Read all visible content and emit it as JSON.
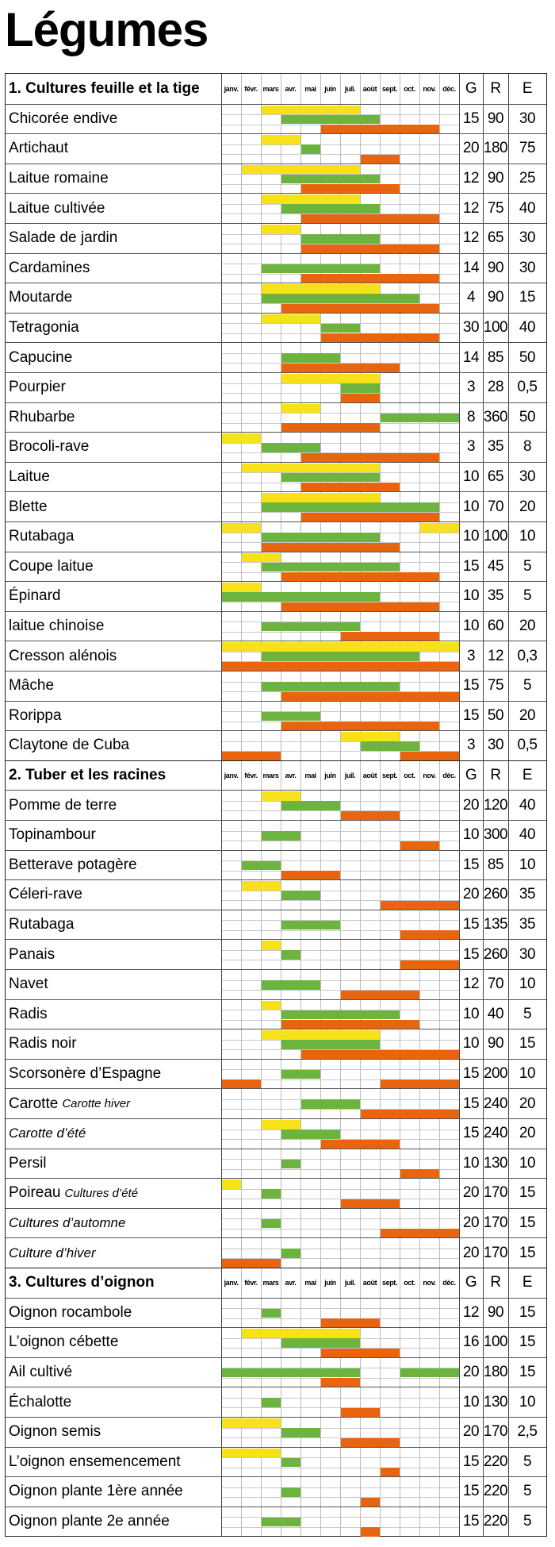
{
  "title": "Légumes",
  "months": [
    "janv.",
    "févr.",
    "mars",
    "avr.",
    "mai",
    "juin",
    "juil.",
    "août",
    "sept.",
    "oct.",
    "nov.",
    "déc."
  ],
  "stat_headers": [
    "G",
    "R",
    "E"
  ],
  "colors": {
    "sowing": "#f7e21a",
    "growing": "#6db33f",
    "harvest": "#e8640f"
  },
  "sections": [
    {
      "title": "1. Cultures feuille et la tige",
      "rows": [
        {
          "name": "Chicorée endive",
          "G": "15",
          "R": "90",
          "E": "30",
          "yellow": [
            [
              3,
              7
            ]
          ],
          "green": [
            [
              4,
              8
            ]
          ],
          "orange": [
            [
              6,
              11
            ]
          ]
        },
        {
          "name": "Artichaut",
          "G": "20",
          "R": "180",
          "E": "75",
          "yellow": [
            [
              3,
              4
            ]
          ],
          "green": [
            [
              5,
              5
            ]
          ],
          "orange": [
            [
              8,
              9
            ]
          ]
        },
        {
          "name": "Laitue romaine",
          "G": "12",
          "R": "90",
          "E": "25",
          "yellow": [
            [
              2,
              7
            ]
          ],
          "green": [
            [
              4,
              8
            ]
          ],
          "orange": [
            [
              5,
              9
            ]
          ]
        },
        {
          "name": "Laitue cultivée",
          "G": "12",
          "R": "75",
          "E": "40",
          "yellow": [
            [
              3,
              7
            ]
          ],
          "green": [
            [
              4,
              8
            ]
          ],
          "orange": [
            [
              5,
              11
            ]
          ]
        },
        {
          "name": "Salade de jardin",
          "G": "12",
          "R": "65",
          "E": "30",
          "yellow": [
            [
              3,
              4
            ]
          ],
          "green": [
            [
              5,
              8
            ]
          ],
          "orange": [
            [
              5,
              11
            ]
          ]
        },
        {
          "name": "Cardamines",
          "G": "14",
          "R": "90",
          "E": "30",
          "yellow": [],
          "green": [
            [
              3,
              8
            ]
          ],
          "orange": [
            [
              5,
              11
            ]
          ]
        },
        {
          "name": "Moutarde",
          "G": "4",
          "R": "90",
          "E": "15",
          "yellow": [
            [
              3,
              8
            ]
          ],
          "green": [
            [
              3,
              10
            ]
          ],
          "orange": [
            [
              4,
              11
            ]
          ]
        },
        {
          "name": "Tetragonia",
          "G": "30",
          "R": "100",
          "E": "40",
          "yellow": [
            [
              3,
              5
            ]
          ],
          "green": [
            [
              6,
              7
            ]
          ],
          "orange": [
            [
              6,
              11
            ]
          ]
        },
        {
          "name": "Capucine",
          "G": "14",
          "R": "85",
          "E": "50",
          "yellow": [],
          "green": [
            [
              4,
              6
            ]
          ],
          "orange": [
            [
              4,
              9
            ]
          ]
        },
        {
          "name": "Pourpier",
          "G": "3",
          "R": "28",
          "E": "0,5",
          "yellow": [
            [
              4,
              8
            ]
          ],
          "green": [
            [
              7,
              8
            ]
          ],
          "orange": [
            [
              7,
              8
            ]
          ]
        },
        {
          "name": "Rhubarbe",
          "G": "8",
          "R": "360",
          "E": "50",
          "yellow": [
            [
              4,
              5
            ]
          ],
          "green": [
            [
              9,
              12
            ]
          ],
          "orange": [
            [
              4,
              8
            ]
          ]
        },
        {
          "name": "Brocoli-rave",
          "G": "3",
          "R": "35",
          "E": "8",
          "yellow": [
            [
              1,
              2
            ]
          ],
          "green": [
            [
              3,
              5
            ]
          ],
          "orange": [
            [
              5,
              11
            ]
          ]
        },
        {
          "name": "Laitue",
          "G": "10",
          "R": "65",
          "E": "30",
          "yellow": [
            [
              2,
              8
            ]
          ],
          "green": [
            [
              4,
              8
            ]
          ],
          "orange": [
            [
              5,
              9
            ]
          ]
        },
        {
          "name": "Blette",
          "G": "10",
          "R": "70",
          "E": "20",
          "yellow": [
            [
              3,
              8
            ]
          ],
          "green": [
            [
              3,
              11
            ]
          ],
          "orange": [
            [
              5,
              11
            ]
          ]
        },
        {
          "name": "Rutabaga",
          "G": "10",
          "R": "100",
          "E": "10",
          "yellow": [
            [
              1,
              2
            ],
            [
              11,
              12
            ]
          ],
          "green": [
            [
              3,
              8
            ]
          ],
          "orange": [
            [
              3,
              9
            ]
          ]
        },
        {
          "name": "Coupe laitue",
          "G": "15",
          "R": "45",
          "E": "5",
          "yellow": [
            [
              2,
              3
            ]
          ],
          "green": [
            [
              3,
              9
            ]
          ],
          "orange": [
            [
              4,
              11
            ]
          ]
        },
        {
          "name": "Épinard",
          "G": "10",
          "R": "35",
          "E": "5",
          "yellow": [
            [
              1,
              2
            ]
          ],
          "green": [
            [
              1,
              8
            ]
          ],
          "orange": [
            [
              4,
              11
            ]
          ]
        },
        {
          "name": "laitue chinoise",
          "G": "10",
          "R": "60",
          "E": "20",
          "yellow": [],
          "green": [
            [
              3,
              7
            ]
          ],
          "orange": [
            [
              7,
              11
            ]
          ]
        },
        {
          "name": "Cresson alénois",
          "G": "3",
          "R": "12",
          "E": "0,3",
          "yellow": [
            [
              1,
              12
            ]
          ],
          "green": [
            [
              3,
              10
            ]
          ],
          "orange": [
            [
              1,
              12
            ]
          ]
        },
        {
          "name": "Mâche",
          "G": "15",
          "R": "75",
          "E": "5",
          "yellow": [],
          "green": [
            [
              3,
              9
            ]
          ],
          "orange": [
            [
              4,
              12
            ]
          ]
        },
        {
          "name": "Rorippa",
          "G": "15",
          "R": "50",
          "E": "20",
          "yellow": [],
          "green": [
            [
              3,
              5
            ]
          ],
          "orange": [
            [
              4,
              11
            ]
          ]
        },
        {
          "name": "Claytone de Cuba",
          "G": "3",
          "R": "30",
          "E": "0,5",
          "yellow": [
            [
              7,
              9
            ]
          ],
          "green": [
            [
              8,
              10
            ]
          ],
          "orange": [
            [
              1,
              3
            ],
            [
              10,
              12
            ]
          ]
        }
      ]
    },
    {
      "title": "2. Tuber et les racines",
      "rows": [
        {
          "name": "Pomme de terre",
          "G": "20",
          "R": "120",
          "E": "40",
          "yellow": [
            [
              3,
              4
            ]
          ],
          "green": [
            [
              4,
              6
            ]
          ],
          "orange": [
            [
              7,
              9
            ]
          ]
        },
        {
          "name": "Topinambour",
          "G": "10",
          "R": "300",
          "E": "40",
          "yellow": [],
          "green": [
            [
              3,
              4
            ]
          ],
          "orange": [
            [
              10,
              11
            ]
          ]
        },
        {
          "name": "Betterave potagère",
          "G": "15",
          "R": "85",
          "E": "10",
          "yellow": [],
          "green": [
            [
              2,
              3
            ]
          ],
          "orange": [
            [
              4,
              6
            ]
          ]
        },
        {
          "name": "Céleri-rave",
          "G": "20",
          "R": "260",
          "E": "35",
          "yellow": [
            [
              2,
              3
            ]
          ],
          "green": [
            [
              4,
              5
            ]
          ],
          "orange": [
            [
              9,
              12
            ]
          ]
        },
        {
          "name": "Rutabaga",
          "G": "15",
          "R": "135",
          "E": "35",
          "yellow": [],
          "green": [
            [
              4,
              6
            ]
          ],
          "orange": [
            [
              10,
              12
            ]
          ]
        },
        {
          "name": "Panais",
          "G": "15",
          "R": "260",
          "E": "30",
          "yellow": [
            [
              3,
              3
            ]
          ],
          "green": [
            [
              4,
              4
            ]
          ],
          "orange": [
            [
              10,
              12
            ]
          ]
        },
        {
          "name": "Navet",
          "G": "12",
          "R": "70",
          "E": "10",
          "yellow": [],
          "green": [
            [
              3,
              5
            ]
          ],
          "orange": [
            [
              7,
              10
            ]
          ]
        },
        {
          "name": "Radis",
          "G": "10",
          "R": "40",
          "E": "5",
          "yellow": [
            [
              3,
              3
            ]
          ],
          "green": [
            [
              4,
              9
            ]
          ],
          "orange": [
            [
              4,
              10
            ]
          ]
        },
        {
          "name": "Radis noir",
          "G": "10",
          "R": "90",
          "E": "15",
          "yellow": [
            [
              3,
              8
            ]
          ],
          "green": [
            [
              4,
              8
            ]
          ],
          "orange": [
            [
              5,
              12
            ]
          ]
        },
        {
          "name": "Scorsonère d’Espagne",
          "G": "15",
          "R": "200",
          "E": "10",
          "yellow": [],
          "green": [
            [
              4,
              5
            ]
          ],
          "orange": [
            [
              1,
              2
            ],
            [
              9,
              12
            ]
          ]
        },
        {
          "name": "Carotte",
          "sub": "Carotte hiver",
          "G": "15",
          "R": "240",
          "E": "20",
          "yellow": [],
          "green": [
            [
              5,
              7
            ]
          ],
          "orange": [
            [
              8,
              12
            ]
          ]
        },
        {
          "name": "Carotte d’été",
          "italic": true,
          "G": "15",
          "R": "240",
          "E": "20",
          "yellow": [
            [
              3,
              4
            ]
          ],
          "green": [
            [
              4,
              6
            ]
          ],
          "orange": [
            [
              6,
              9
            ]
          ]
        },
        {
          "name": "Persil",
          "G": "10",
          "R": "130",
          "E": "10",
          "yellow": [],
          "green": [
            [
              4,
              4
            ]
          ],
          "orange": [
            [
              10,
              11
            ]
          ]
        },
        {
          "name": "Poireau",
          "sub": "Cultures d’été",
          "G": "20",
          "R": "170",
          "E": "15",
          "yellow": [
            [
              1,
              1
            ]
          ],
          "green": [
            [
              3,
              3
            ]
          ],
          "orange": [
            [
              7,
              9
            ]
          ]
        },
        {
          "name": "Cultures d’automne",
          "italic": true,
          "G": "20",
          "R": "170",
          "E": "15",
          "yellow": [],
          "green": [
            [
              3,
              3
            ]
          ],
          "orange": [
            [
              9,
              12
            ]
          ]
        },
        {
          "name": "Culture d’hiver",
          "italic": true,
          "G": "20",
          "R": "170",
          "E": "15",
          "yellow": [],
          "green": [
            [
              4,
              4
            ]
          ],
          "orange": [
            [
              1,
              3
            ]
          ]
        }
      ]
    },
    {
      "title": "3. Cultures d’oignon",
      "rows": [
        {
          "name": "Oignon rocambole",
          "G": "12",
          "R": "90",
          "E": "15",
          "yellow": [],
          "green": [
            [
              3,
              3
            ]
          ],
          "orange": [
            [
              6,
              8
            ]
          ]
        },
        {
          "name": "L’oignon cébette",
          "G": "16",
          "R": "100",
          "E": "15",
          "yellow": [
            [
              2,
              7
            ]
          ],
          "green": [
            [
              4,
              7
            ]
          ],
          "orange": [
            [
              6,
              9
            ]
          ]
        },
        {
          "name": "Ail cultivé",
          "G": "20",
          "R": "180",
          "E": "15",
          "yellow": [],
          "green": [
            [
              1,
              7
            ],
            [
              10,
              12
            ]
          ],
          "orange": [
            [
              6,
              7
            ]
          ]
        },
        {
          "name": "Échalotte",
          "G": "10",
          "R": "130",
          "E": "10",
          "yellow": [],
          "green": [
            [
              3,
              3
            ]
          ],
          "orange": [
            [
              7,
              8
            ]
          ]
        },
        {
          "name": "Oignon semis",
          "G": "20",
          "R": "170",
          "E": "2,5",
          "yellow": [
            [
              1,
              3
            ]
          ],
          "green": [
            [
              4,
              5
            ]
          ],
          "orange": [
            [
              7,
              9
            ]
          ]
        },
        {
          "name": "L’oignon ensemencement",
          "G": "15",
          "R": "220",
          "E": "5",
          "yellow": [
            [
              1,
              3
            ]
          ],
          "green": [
            [
              4,
              4
            ]
          ],
          "orange": [
            [
              9,
              9
            ]
          ]
        },
        {
          "name": "Oignon plante 1ère année",
          "G": "15",
          "R": "220",
          "E": "5",
          "yellow": [],
          "green": [
            [
              4,
              4
            ]
          ],
          "orange": [
            [
              8,
              8
            ]
          ]
        },
        {
          "name": "Oignon plante 2e année",
          "G": "15",
          "R": "220",
          "E": "5",
          "yellow": [],
          "green": [
            [
              3,
              4
            ]
          ],
          "orange": [
            [
              8,
              8
            ]
          ]
        }
      ]
    }
  ]
}
